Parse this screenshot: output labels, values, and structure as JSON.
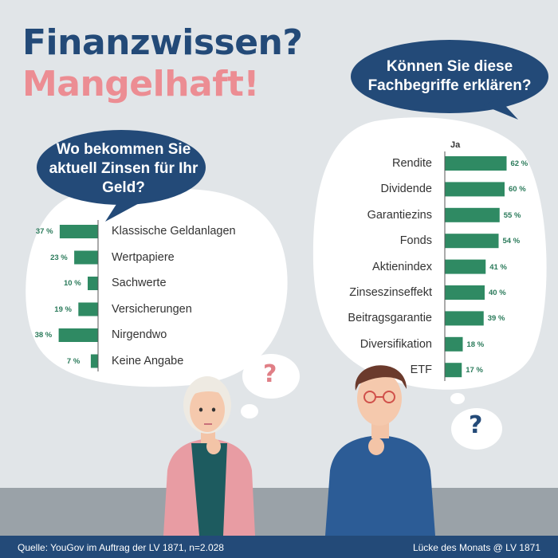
{
  "title": {
    "line1": "Finanzwissen?",
    "line2": "Mangelhaft!"
  },
  "colors": {
    "navy": "#234a78",
    "pink": "#ec8d93",
    "green": "#2f8a63",
    "bg": "#e1e5e8"
  },
  "left_question": "Wo bekommen Sie aktuell Zinsen für Ihr Geld?",
  "right_question": "Können Sie diese Fachbegriffe erklären?",
  "question_marks": {
    "left": "?",
    "right": "?"
  },
  "chart_data": [
    {
      "type": "bar",
      "orientation": "horizontal",
      "title": "Wo bekommen Sie aktuell Zinsen für Ihr Geld?",
      "categories": [
        "Klassische Geldanlagen",
        "Wertpapiere",
        "Sachwerte",
        "Versicherungen",
        "Nirgendwo",
        "Keine Angabe"
      ],
      "values": [
        37,
        23,
        10,
        19,
        38,
        7
      ],
      "value_labels": [
        "37 %",
        "23 %",
        "10 %",
        "19 %",
        "38 %",
        "7 %"
      ],
      "unit": "%"
    },
    {
      "type": "bar",
      "orientation": "horizontal",
      "title": "Können Sie diese Fachbegriffe erklären?",
      "series_label": "Ja",
      "categories": [
        "Rendite",
        "Dividende",
        "Garantiezins",
        "Fonds",
        "Aktienindex",
        "Zinseszinseffekt",
        "Beitragsgarantie",
        "Diversifikation",
        "ETF"
      ],
      "values": [
        62,
        60,
        55,
        54,
        41,
        40,
        39,
        18,
        17
      ],
      "value_labels": [
        "62 %",
        "60 %",
        "55 %",
        "54 %",
        "41 %",
        "40 %",
        "39 %",
        "18 %",
        "17 %"
      ],
      "unit": "%"
    }
  ],
  "footer": {
    "source": "Quelle: YouGov im Auftrag der LV 1871, n=2.028",
    "credit": "Lücke des Monats @ LV 1871"
  }
}
